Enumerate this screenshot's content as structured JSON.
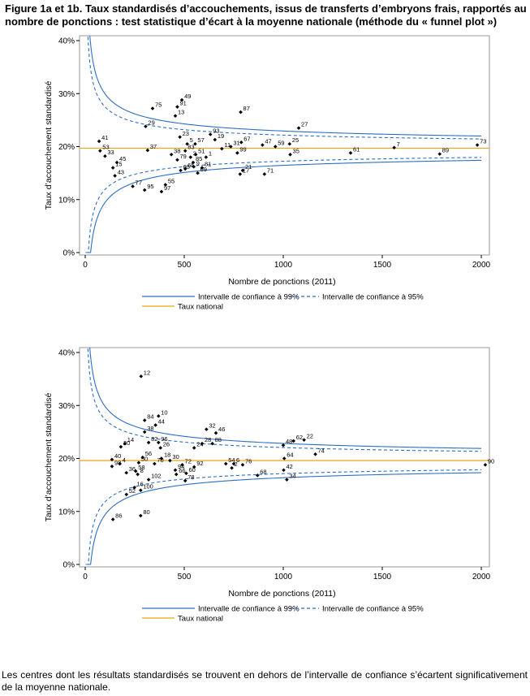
{
  "title": "Figure 1a et 1b. Taux standardisés d’accouchements, issus de transferts d’embryons frais, rapportés au nombre de ponctions : test statistique d’écart à la moyenne nationale (méthode du « funnel plot »)",
  "footer": "Les centres dont les résultats standardisés se trouvent en dehors de l’intervalle de confiance s’écartent significativement de la moyenne nationale.",
  "colors": {
    "ci": "#2e6fc4",
    "national": "#e6a817",
    "points": "#000000",
    "frame": "#9a9a9a"
  },
  "chart_data": [
    {
      "type": "scatter",
      "title": "",
      "xlabel": "Nombre de ponctions (2011)",
      "ylabel": "Taux d’accouchement standardisé",
      "xlim": [
        0,
        2000
      ],
      "ylim": [
        0,
        40
      ],
      "x_ticks": [
        "0",
        "500",
        "1000",
        "1500",
        "2000"
      ],
      "y_ticks": [
        "0%",
        "10%",
        "20%",
        "30%",
        "40%"
      ],
      "national_rate": 19.7,
      "legend": {
        "ci99": "Intervalle de confiance à 99%",
        "ci95": "Intervalle de confiance à 95%",
        "national": "Taux national"
      },
      "points": [
        {
          "label": "33",
          "x": 100,
          "y": 18.2
        },
        {
          "label": "53",
          "x": 75,
          "y": 19.2
        },
        {
          "label": "41",
          "x": 70,
          "y": 21.0
        },
        {
          "label": "15",
          "x": 140,
          "y": 16.0
        },
        {
          "label": "45",
          "x": 160,
          "y": 17.0
        },
        {
          "label": "43",
          "x": 150,
          "y": 14.5
        },
        {
          "label": "77",
          "x": 240,
          "y": 12.5
        },
        {
          "label": "95",
          "x": 300,
          "y": 11.8
        },
        {
          "label": "37",
          "x": 315,
          "y": 19.3
        },
        {
          "label": "29",
          "x": 305,
          "y": 23.8
        },
        {
          "label": "75",
          "x": 340,
          "y": 27.2
        },
        {
          "label": "91",
          "x": 465,
          "y": 27.5
        },
        {
          "label": "49",
          "x": 488,
          "y": 28.8
        },
        {
          "label": "13",
          "x": 455,
          "y": 25.8
        },
        {
          "label": "23",
          "x": 478,
          "y": 21.8
        },
        {
          "label": "83",
          "x": 505,
          "y": 19.2
        },
        {
          "label": "38",
          "x": 435,
          "y": 18.5
        },
        {
          "label": "79",
          "x": 465,
          "y": 17.5
        },
        {
          "label": "63",
          "x": 482,
          "y": 15.5
        },
        {
          "label": "65",
          "x": 505,
          "y": 15.8
        },
        {
          "label": "97",
          "x": 385,
          "y": 11.5
        },
        {
          "label": "55",
          "x": 405,
          "y": 12.8
        },
        {
          "label": "5",
          "x": 515,
          "y": 20.5
        },
        {
          "label": "57",
          "x": 555,
          "y": 20.5
        },
        {
          "label": "51",
          "x": 558,
          "y": 18.5
        },
        {
          "label": "3",
          "x": 532,
          "y": 18.0
        },
        {
          "label": "85",
          "x": 545,
          "y": 17.0
        },
        {
          "label": "9",
          "x": 548,
          "y": 16.2
        },
        {
          "label": "81",
          "x": 590,
          "y": 16.0
        },
        {
          "label": "69",
          "x": 568,
          "y": 15.0
        },
        {
          "label": "1",
          "x": 610,
          "y": 18.0
        },
        {
          "label": "19",
          "x": 655,
          "y": 21.3
        },
        {
          "label": "93",
          "x": 632,
          "y": 22.3
        },
        {
          "label": "11",
          "x": 690,
          "y": 19.6
        },
        {
          "label": "31",
          "x": 735,
          "y": 20.0
        },
        {
          "label": "99",
          "x": 768,
          "y": 18.8
        },
        {
          "label": "67",
          "x": 788,
          "y": 20.8
        },
        {
          "label": "87",
          "x": 785,
          "y": 26.5
        },
        {
          "label": "21",
          "x": 795,
          "y": 15.5
        },
        {
          "label": "17",
          "x": 782,
          "y": 14.8
        },
        {
          "label": "47",
          "x": 895,
          "y": 20.3
        },
        {
          "label": "59",
          "x": 960,
          "y": 20.0
        },
        {
          "label": "71",
          "x": 905,
          "y": 14.8
        },
        {
          "label": "25",
          "x": 1032,
          "y": 20.5
        },
        {
          "label": "35",
          "x": 1035,
          "y": 18.5
        },
        {
          "label": "27",
          "x": 1078,
          "y": 23.5
        },
        {
          "label": "61",
          "x": 1340,
          "y": 18.8
        },
        {
          "label": "7",
          "x": 1560,
          "y": 19.8
        },
        {
          "label": "89",
          "x": 1790,
          "y": 18.6
        },
        {
          "label": "73",
          "x": 1980,
          "y": 20.3
        }
      ]
    },
    {
      "type": "scatter",
      "title": "",
      "xlabel": "Nombre de ponctions (2011)",
      "ylabel": "Taux d’accouchement standardisé",
      "xlim": [
        0,
        2000
      ],
      "ylim": [
        0,
        40
      ],
      "x_ticks": [
        "0",
        "500",
        "1000",
        "1500",
        "2000"
      ],
      "y_ticks": [
        "0%",
        "10%",
        "20%",
        "30%",
        "40%"
      ],
      "national_rate": 19.6,
      "legend": {
        "ci99": "Intervalle de confiance à 99%",
        "ci95": "Intervalle de confiance à 95%",
        "national": "Taux national"
      },
      "points": [
        {
          "label": "12",
          "x": 282,
          "y": 35.5
        },
        {
          "label": "84",
          "x": 300,
          "y": 27.2
        },
        {
          "label": "44",
          "x": 355,
          "y": 26.3
        },
        {
          "label": "10",
          "x": 370,
          "y": 28.0
        },
        {
          "label": "38",
          "x": 300,
          "y": 25.0
        },
        {
          "label": "82",
          "x": 320,
          "y": 23.0
        },
        {
          "label": "96",
          "x": 370,
          "y": 23.0
        },
        {
          "label": "26",
          "x": 380,
          "y": 22.0
        },
        {
          "label": "14",
          "x": 200,
          "y": 22.8
        },
        {
          "label": "20",
          "x": 180,
          "y": 22.2
        },
        {
          "label": "40",
          "x": 135,
          "y": 19.8
        },
        {
          "label": "4",
          "x": 175,
          "y": 19.0
        },
        {
          "label": "98",
          "x": 135,
          "y": 18.5
        },
        {
          "label": "56",
          "x": 290,
          "y": 20.2
        },
        {
          "label": "18",
          "x": 385,
          "y": 20.0
        },
        {
          "label": "30",
          "x": 428,
          "y": 19.6
        },
        {
          "label": "50",
          "x": 270,
          "y": 19.2
        },
        {
          "label": "70",
          "x": 350,
          "y": 19.0
        },
        {
          "label": "36",
          "x": 208,
          "y": 17.3
        },
        {
          "label": "58",
          "x": 255,
          "y": 17.6
        },
        {
          "label": "8",
          "x": 265,
          "y": 17.0
        },
        {
          "label": "94",
          "x": 455,
          "y": 17.8
        },
        {
          "label": "72",
          "x": 490,
          "y": 18.8
        },
        {
          "label": "92",
          "x": 550,
          "y": 18.4
        },
        {
          "label": "66",
          "x": 460,
          "y": 17.0
        },
        {
          "label": "60",
          "x": 510,
          "y": 17.2
        },
        {
          "label": "102",
          "x": 320,
          "y": 16.0
        },
        {
          "label": "78",
          "x": 505,
          "y": 15.8
        },
        {
          "label": "16",
          "x": 248,
          "y": 14.5
        },
        {
          "label": "100",
          "x": 280,
          "y": 14.0
        },
        {
          "label": "52",
          "x": 208,
          "y": 13.2
        },
        {
          "label": "86",
          "x": 140,
          "y": 8.5
        },
        {
          "label": "80",
          "x": 280,
          "y": 9.2
        },
        {
          "label": "24",
          "x": 550,
          "y": 22.0
        },
        {
          "label": "28",
          "x": 590,
          "y": 22.8
        },
        {
          "label": "88",
          "x": 642,
          "y": 22.8
        },
        {
          "label": "32",
          "x": 612,
          "y": 25.5
        },
        {
          "label": "46",
          "x": 660,
          "y": 24.8
        },
        {
          "label": "54",
          "x": 710,
          "y": 19.0
        },
        {
          "label": "2",
          "x": 740,
          "y": 18.2
        },
        {
          "label": "6",
          "x": 750,
          "y": 19.0
        },
        {
          "label": "76",
          "x": 795,
          "y": 18.8
        },
        {
          "label": "68",
          "x": 870,
          "y": 16.8
        },
        {
          "label": "48",
          "x": 1000,
          "y": 22.5
        },
        {
          "label": "62",
          "x": 1052,
          "y": 23.3
        },
        {
          "label": "64",
          "x": 1005,
          "y": 20.0
        },
        {
          "label": "42",
          "x": 1002,
          "y": 17.8
        },
        {
          "label": "34",
          "x": 1018,
          "y": 16.0
        },
        {
          "label": "22",
          "x": 1105,
          "y": 23.5
        },
        {
          "label": "74",
          "x": 1162,
          "y": 20.8
        },
        {
          "label": "90",
          "x": 2020,
          "y": 18.8
        }
      ]
    }
  ]
}
